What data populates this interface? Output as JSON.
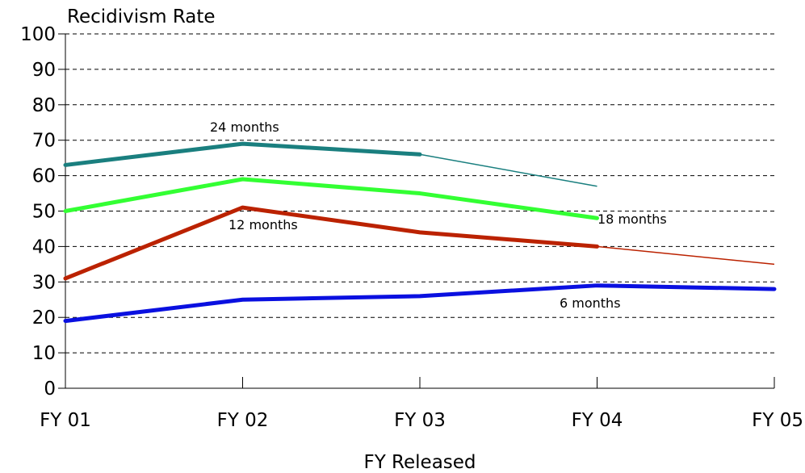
{
  "chart_data": {
    "type": "line",
    "title": "",
    "ylabel": "Recidivism Rate",
    "xlabel": "FY Released",
    "categories": [
      "FY 01",
      "FY 02",
      "FY 03",
      "FY 04",
      "FY 05"
    ],
    "ylim": [
      0,
      100
    ],
    "yticks": [
      0,
      10,
      20,
      30,
      40,
      50,
      60,
      70,
      80,
      90,
      100
    ],
    "grid": "horizontal dashed",
    "series": [
      {
        "name": "24 months",
        "color": "#1a7f7f",
        "values": [
          63,
          69,
          66,
          57,
          null
        ],
        "observed_through_index": 2
      },
      {
        "name": "18 months",
        "color": "#33ff33",
        "values": [
          50,
          59,
          55,
          48,
          null
        ],
        "observed_through_index": 3
      },
      {
        "name": "12 months",
        "color": "#bb2200",
        "values": [
          31,
          51,
          44,
          40,
          35
        ],
        "observed_through_index": 3
      },
      {
        "name": "6 months",
        "color": "#0a10e0",
        "values": [
          19,
          25,
          26,
          29,
          28
        ],
        "observed_through_index": 4
      }
    ]
  }
}
